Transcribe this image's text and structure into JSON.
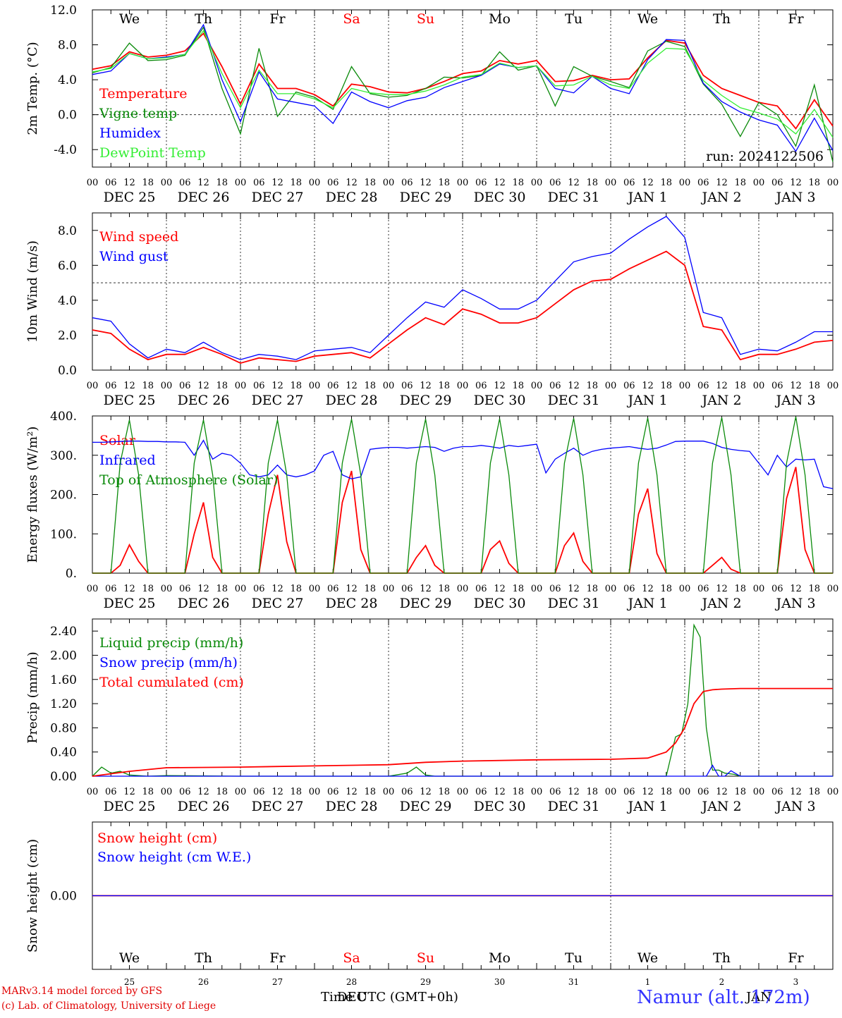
{
  "colors": {
    "red": "#ff0000",
    "dark_green": "#0a8a0a",
    "blue": "#0000ff",
    "light_green": "#33ee33",
    "weekend": "#ff0000",
    "grid": "#444444"
  },
  "day_names": [
    "We",
    "Th",
    "Fr",
    "Sa",
    "Su",
    "Mo",
    "Tu",
    "We",
    "Th",
    "Fr"
  ],
  "weekend_days": [
    "Sa",
    "Su"
  ],
  "hour_ticks": [
    "00",
    "06",
    "12",
    "18"
  ],
  "date_labels": [
    "DEC 25",
    "DEC 26",
    "DEC 27",
    "DEC 28",
    "DEC 29",
    "DEC 30",
    "DEC 31",
    "JAN  1",
    "JAN  2",
    "JAN  3"
  ],
  "snow_day_numbers": [
    "25",
    "26",
    "27",
    "28",
    "29",
    "30",
    "31",
    "1",
    "2",
    "3"
  ],
  "footer": {
    "credit_line1": "MARv3.14 model forced by GFS",
    "credit_line2": "(c) Lab. of Climatology, University of Liege",
    "station": "Namur (alt. 172m)",
    "time_axis_label": "Time UTC (GMT+0h)",
    "time_axis_overlay": "DEC",
    "time_axis_overlay2": "JAN"
  },
  "chart_data": [
    {
      "type": "line",
      "id": "temperature",
      "ylabel": "2m Temp. (°C)",
      "ylim": [
        -6,
        12
      ],
      "yticks": [
        "12.0",
        "8.0",
        "4.0",
        "0.0",
        "-4.0"
      ],
      "ytick_values": [
        12,
        8,
        4,
        0,
        -4
      ],
      "reference_line": 0,
      "annotation": "run: 2024122506",
      "x_hours": [
        0,
        6,
        12,
        18,
        24,
        30,
        36,
        42,
        48,
        54,
        60,
        66,
        72,
        78,
        84,
        90,
        96,
        102,
        108,
        114,
        120,
        126,
        132,
        138,
        144,
        150,
        156,
        162,
        168,
        174,
        180,
        186,
        192,
        198,
        204,
        210,
        216,
        222,
        228,
        234,
        240
      ],
      "series": [
        {
          "name": "Temperature",
          "color": "red",
          "values": [
            5.2,
            5.6,
            7.2,
            6.6,
            6.8,
            7.3,
            9.3,
            5.5,
            1.2,
            5.8,
            3.0,
            3.0,
            2.3,
            1.0,
            3.5,
            3.2,
            2.6,
            2.5,
            3.0,
            3.8,
            4.7,
            5.0,
            6.2,
            5.8,
            6.2,
            3.8,
            3.9,
            4.5,
            4.0,
            4.1,
            6.5,
            8.5,
            8.2,
            4.5,
            3.0,
            2.2,
            1.4,
            1.0,
            -1.6,
            1.7,
            -1.3
          ]
        },
        {
          "name": "Vigne temp",
          "color": "dark_green",
          "values": [
            4.8,
            5.4,
            8.2,
            6.2,
            6.3,
            6.8,
            10.0,
            3.0,
            -2.2,
            7.6,
            -0.2,
            2.6,
            2.0,
            0.6,
            5.5,
            2.4,
            2.0,
            2.2,
            3.0,
            4.3,
            4.2,
            4.5,
            7.2,
            5.1,
            5.6,
            1.0,
            5.5,
            4.4,
            3.8,
            3.1,
            7.3,
            8.4,
            7.8,
            3.5,
            1.2,
            -2.5,
            1.4,
            0.0,
            -3.6,
            3.4,
            -5.4
          ]
        },
        {
          "name": "Humidex",
          "color": "blue",
          "values": [
            4.6,
            5.0,
            7.0,
            6.4,
            6.6,
            6.9,
            10.3,
            4.0,
            -0.8,
            4.9,
            1.8,
            1.4,
            1.0,
            -1.0,
            2.6,
            1.5,
            0.8,
            1.6,
            2.0,
            3.1,
            3.8,
            4.5,
            5.8,
            5.4,
            5.6,
            3.0,
            2.5,
            4.4,
            3.0,
            2.4,
            6.3,
            8.6,
            8.5,
            3.6,
            1.5,
            0.3,
            -0.6,
            -1.2,
            -4.2,
            -0.4,
            -4.1
          ]
        },
        {
          "name": "DewPoint Temp",
          "color": "light_green",
          "values": [
            4.9,
            5.3,
            7.0,
            6.4,
            6.5,
            6.9,
            9.6,
            4.7,
            0.8,
            5.1,
            2.4,
            2.4,
            1.8,
            0.8,
            3.0,
            2.5,
            2.3,
            2.3,
            2.7,
            3.4,
            4.3,
            4.6,
            5.9,
            5.4,
            5.6,
            3.3,
            3.4,
            4.4,
            3.4,
            3.0,
            5.9,
            7.6,
            7.5,
            3.9,
            2.2,
            0.8,
            0.2,
            -0.5,
            -2.2,
            0.6,
            -2.6
          ]
        }
      ]
    },
    {
      "type": "line",
      "id": "wind",
      "ylabel": "10m Wind (m/s)",
      "ylim": [
        0,
        9
      ],
      "yticks": [
        "8.0",
        "6.0",
        "4.0",
        "2.0",
        "0.0"
      ],
      "ytick_values": [
        8,
        6,
        4,
        2,
        0
      ],
      "reference_line": 5,
      "x_hours": [
        0,
        6,
        12,
        18,
        24,
        30,
        36,
        42,
        48,
        54,
        60,
        66,
        72,
        78,
        84,
        90,
        96,
        102,
        108,
        114,
        120,
        126,
        132,
        138,
        144,
        150,
        156,
        162,
        168,
        174,
        180,
        186,
        192,
        198,
        204,
        210,
        216,
        222,
        228,
        234,
        240
      ],
      "series": [
        {
          "name": "Wind speed",
          "color": "red",
          "values": [
            2.3,
            2.1,
            1.2,
            0.6,
            0.9,
            0.9,
            1.3,
            0.9,
            0.4,
            0.7,
            0.6,
            0.5,
            0.8,
            0.9,
            1.0,
            0.7,
            1.5,
            2.3,
            3.0,
            2.6,
            3.5,
            3.2,
            2.7,
            2.7,
            3.0,
            3.8,
            4.6,
            5.1,
            5.2,
            5.8,
            6.3,
            6.8,
            6.0,
            2.5,
            2.3,
            0.6,
            0.9,
            0.9,
            1.2,
            1.6,
            1.7
          ]
        },
        {
          "name": "Wind gust",
          "color": "blue",
          "values": [
            3.0,
            2.8,
            1.5,
            0.7,
            1.2,
            1.0,
            1.6,
            1.0,
            0.6,
            0.9,
            0.8,
            0.6,
            1.1,
            1.2,
            1.3,
            1.0,
            2.0,
            3.0,
            3.9,
            3.6,
            4.6,
            4.1,
            3.5,
            3.5,
            4.0,
            5.1,
            6.2,
            6.5,
            6.7,
            7.5,
            8.2,
            8.8,
            7.6,
            3.3,
            3.0,
            0.9,
            1.2,
            1.1,
            1.6,
            2.2,
            2.2
          ]
        }
      ]
    },
    {
      "type": "line",
      "id": "energy",
      "ylabel": "Energy fluxes (W/m²)",
      "ylim": [
        0,
        400
      ],
      "yticks": [
        "400.",
        "300.",
        "200.",
        "100.",
        "0."
      ],
      "ytick_values": [
        400,
        300,
        200,
        100,
        0
      ],
      "x_hours": [
        0,
        3,
        6,
        9,
        12,
        15,
        18,
        21,
        24,
        27,
        30,
        33,
        36,
        39,
        42,
        45,
        48,
        51,
        54,
        57,
        60,
        63,
        66,
        69,
        72,
        75,
        78,
        81,
        84,
        87,
        90,
        93,
        96,
        99,
        102,
        105,
        108,
        111,
        114,
        117,
        120,
        123,
        126,
        129,
        132,
        135,
        138,
        141,
        144,
        147,
        150,
        153,
        156,
        159,
        162,
        165,
        168,
        171,
        174,
        177,
        180,
        183,
        186,
        189,
        192,
        195,
        198,
        201,
        204,
        207,
        210,
        213,
        216,
        219,
        222,
        225,
        228,
        231,
        234,
        237,
        240
      ],
      "series": [
        {
          "name": "Solar",
          "color": "red",
          "values": [
            0,
            0,
            0,
            20,
            72,
            30,
            0,
            0,
            0,
            0,
            0,
            100,
            180,
            40,
            0,
            0,
            0,
            0,
            0,
            150,
            250,
            80,
            0,
            0,
            0,
            0,
            0,
            180,
            260,
            60,
            0,
            0,
            0,
            0,
            0,
            40,
            70,
            20,
            0,
            0,
            0,
            0,
            0,
            60,
            82,
            25,
            0,
            0,
            0,
            0,
            0,
            70,
            102,
            30,
            0,
            0,
            0,
            0,
            0,
            150,
            215,
            50,
            0,
            0,
            0,
            0,
            0,
            20,
            40,
            10,
            0,
            0,
            0,
            0,
            0,
            190,
            270,
            60,
            0,
            0,
            0
          ]
        },
        {
          "name": "Infrared",
          "color": "blue",
          "values": [
            333,
            333,
            334,
            335,
            336,
            336,
            335,
            335,
            334,
            334,
            333,
            300,
            338,
            290,
            305,
            300,
            280,
            250,
            245,
            250,
            275,
            250,
            245,
            250,
            260,
            300,
            310,
            250,
            240,
            245,
            315,
            318,
            320,
            320,
            318,
            320,
            322,
            320,
            310,
            318,
            322,
            322,
            325,
            322,
            318,
            325,
            322,
            325,
            328,
            255,
            290,
            305,
            318,
            300,
            310,
            315,
            318,
            320,
            322,
            318,
            315,
            318,
            326,
            335,
            336,
            336,
            336,
            330,
            320,
            315,
            312,
            310,
            280,
            250,
            300,
            270,
            290,
            288,
            290,
            220,
            215
          ]
        },
        {
          "name": "Top of Atmosphere (Solar)",
          "color": "dark_green",
          "values": [
            0,
            0,
            0,
            280,
            390,
            250,
            0,
            0,
            0,
            0,
            0,
            280,
            390,
            250,
            0,
            0,
            0,
            0,
            0,
            280,
            390,
            250,
            0,
            0,
            0,
            0,
            0,
            280,
            392,
            250,
            0,
            0,
            0,
            0,
            0,
            280,
            392,
            250,
            0,
            0,
            0,
            0,
            0,
            280,
            393,
            250,
            0,
            0,
            0,
            0,
            0,
            280,
            394,
            250,
            0,
            0,
            0,
            0,
            0,
            280,
            395,
            250,
            0,
            0,
            0,
            0,
            0,
            280,
            396,
            250,
            0,
            0,
            0,
            0,
            0,
            280,
            398,
            250,
            0,
            0,
            0
          ]
        }
      ]
    },
    {
      "type": "line",
      "id": "precip",
      "ylabel": "Precip (mm/h)",
      "ylim": [
        0,
        2.6
      ],
      "yticks": [
        "2.40",
        "2.00",
        "1.60",
        "1.20",
        "0.80",
        "0.40",
        "0.00"
      ],
      "ytick_values": [
        2.4,
        2.0,
        1.6,
        1.2,
        0.8,
        0.4,
        0.0
      ],
      "series": [
        {
          "name": "Liquid precip (mm/h)",
          "color": "dark_green",
          "x_hours": [
            0,
            3,
            6,
            9,
            12,
            18,
            24,
            48,
            72,
            96,
            102,
            105,
            108,
            111,
            114,
            120,
            144,
            168,
            180,
            186,
            189,
            191,
            193,
            195,
            197,
            199,
            201,
            203,
            205,
            208,
            210,
            216,
            240
          ],
          "values": [
            0.0,
            0.15,
            0.05,
            0.08,
            0.02,
            0.0,
            0.01,
            0.0,
            0.0,
            0.0,
            0.05,
            0.15,
            0.02,
            0.0,
            0.0,
            0.0,
            0.0,
            0.0,
            0.0,
            0.0,
            0.65,
            0.7,
            1.2,
            2.5,
            2.3,
            0.8,
            0.1,
            0.1,
            0.05,
            0.03,
            0.0,
            0.0,
            0.0
          ]
        },
        {
          "name": "Snow precip (mm/h)",
          "color": "blue",
          "x_hours": [
            0,
            190,
            193,
            196,
            199,
            201,
            203,
            205,
            207,
            210,
            213,
            240
          ],
          "values": [
            0.0,
            0.0,
            0.0,
            0.0,
            0.0,
            0.18,
            0.0,
            0.0,
            0.09,
            0.0,
            0.0,
            0.0
          ]
        },
        {
          "name": "Total cumulated (cm)",
          "color": "red",
          "x_hours": [
            0,
            12,
            24,
            48,
            72,
            96,
            108,
            120,
            144,
            168,
            180,
            186,
            189,
            192,
            195,
            198,
            201,
            204,
            210,
            240
          ],
          "values": [
            0.0,
            0.08,
            0.14,
            0.15,
            0.17,
            0.19,
            0.23,
            0.25,
            0.27,
            0.28,
            0.3,
            0.4,
            0.55,
            0.8,
            1.2,
            1.4,
            1.43,
            1.44,
            1.45,
            1.45
          ]
        }
      ]
    },
    {
      "type": "line",
      "id": "snow",
      "ylabel": "Snow height (cm)",
      "yticks": [
        "0.00"
      ],
      "ytick_values": [
        0
      ],
      "series": [
        {
          "name": "Snow height (cm)",
          "color": "red",
          "values": [
            0,
            0
          ]
        },
        {
          "name": "Snow height (cm W.E.)",
          "color": "blue",
          "values": [
            0,
            0
          ]
        }
      ]
    }
  ]
}
